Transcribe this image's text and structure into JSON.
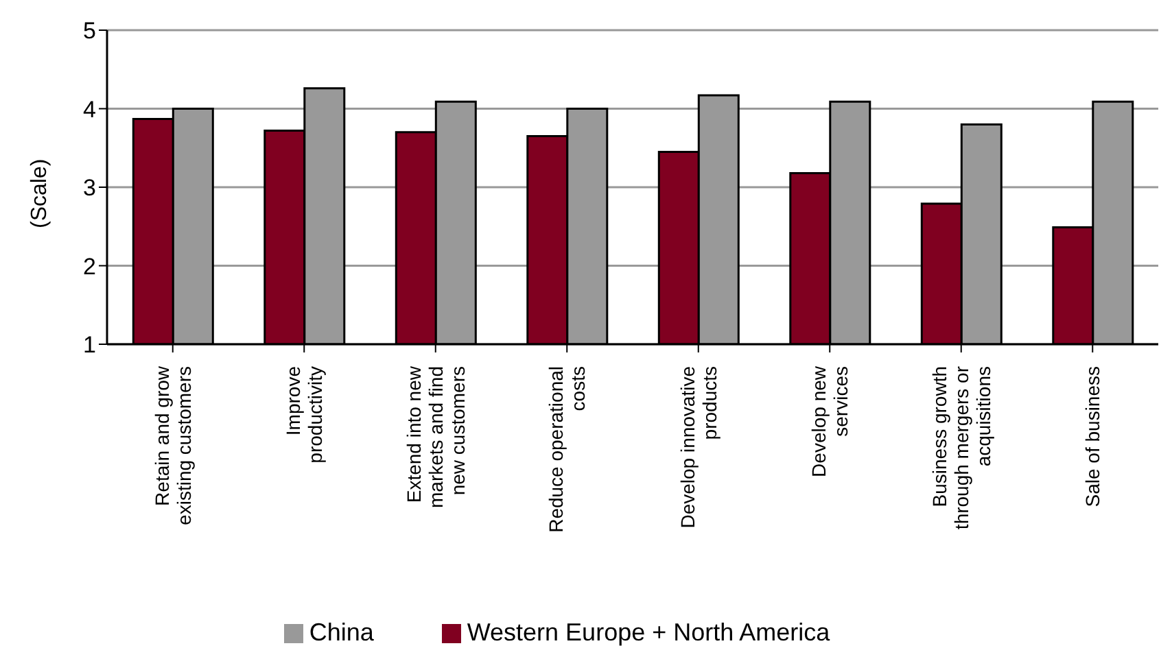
{
  "chart_data": {
    "type": "bar",
    "ylabel": "(Scale)",
    "categories": [
      "Retain and grow existing customers",
      "Improve productivity",
      "Extend into new markets and find new customers",
      "Reduce operational costs",
      "Develop innovative products",
      "Develop new services",
      "Business growth through mergers or acquisitions",
      "Sale of business"
    ],
    "series": [
      {
        "name": "Western Europe + North America",
        "color": "#800020",
        "values": [
          3.87,
          3.72,
          3.7,
          3.65,
          3.45,
          3.18,
          2.79,
          2.49
        ]
      },
      {
        "name": "China",
        "color": "#999999",
        "values": [
          4.0,
          4.26,
          4.09,
          4.0,
          4.17,
          4.09,
          3.8,
          4.09
        ]
      }
    ],
    "ylim": [
      1,
      5
    ],
    "yticks": [
      1,
      2,
      3,
      4,
      5
    ],
    "grid": "y",
    "legend": "bottom"
  }
}
